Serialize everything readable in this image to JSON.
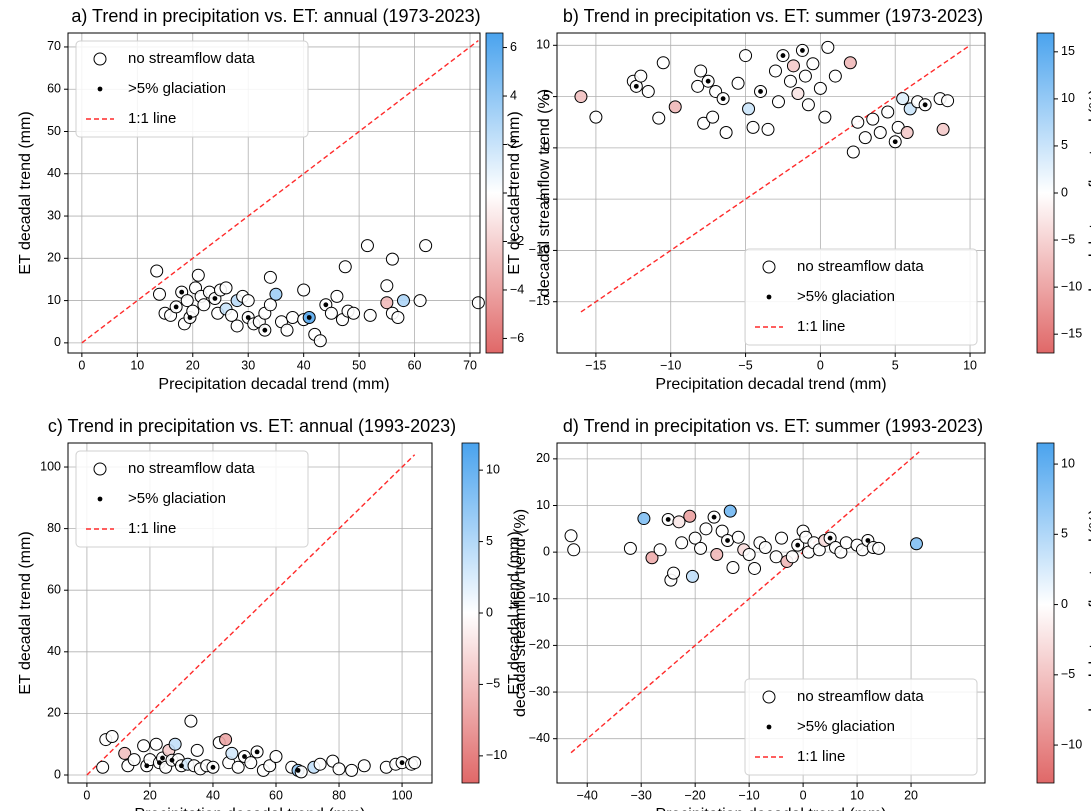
{
  "chart_data": [
    {
      "type": "scatter",
      "title": "a) Trend in precipitation vs. ET: annual (1973-2023)",
      "xlabel": "Precipitation decadal trend (mm)",
      "ylabel": "ET decadal trend (mm)",
      "x": [
        13.5,
        14,
        15,
        16,
        17,
        18,
        18.5,
        19,
        19.5,
        20,
        20.5,
        21,
        21.5,
        22,
        23,
        24,
        24.5,
        25,
        26,
        26,
        27,
        28,
        28,
        29,
        30,
        30,
        31,
        32,
        33,
        33,
        34,
        34,
        35,
        36,
        37,
        38,
        40,
        40,
        41,
        42,
        43,
        44,
        45,
        46,
        47,
        47.5,
        48,
        49,
        51.5,
        52,
        55,
        55,
        56,
        56,
        57,
        58,
        61,
        62,
        71.5
      ],
      "values": [
        17,
        11.5,
        7,
        6.5,
        8.5,
        12,
        4.5,
        10,
        6,
        7.5,
        13,
        16,
        11,
        9,
        12,
        10.5,
        7,
        12.5,
        8,
        13,
        6.5,
        10,
        4,
        11,
        6,
        10,
        4.5,
        5,
        3,
        7,
        15.5,
        9,
        11.5,
        5,
        3,
        6,
        5.5,
        12.5,
        6,
        2,
        0.5,
        9,
        7,
        11,
        5.5,
        18,
        7.5,
        7,
        23,
        6.5,
        9.5,
        13.5,
        7,
        19.8,
        6,
        10,
        10,
        23,
        9.5
      ],
      "streamflow_trend": [
        null,
        null,
        null,
        null,
        null,
        null,
        null,
        null,
        null,
        null,
        null,
        null,
        null,
        null,
        null,
        null,
        null,
        null,
        2,
        null,
        null,
        2.5,
        null,
        null,
        null,
        null,
        null,
        null,
        null,
        null,
        null,
        null,
        3.5,
        null,
        null,
        null,
        null,
        null,
        6,
        null,
        null,
        null,
        null,
        null,
        null,
        null,
        null,
        null,
        null,
        null,
        -3,
        null,
        null,
        null,
        null,
        3,
        null,
        null,
        null
      ],
      "glaciated": [
        false,
        false,
        false,
        false,
        true,
        true,
        false,
        false,
        true,
        false,
        false,
        false,
        false,
        false,
        false,
        true,
        false,
        false,
        false,
        false,
        false,
        false,
        false,
        false,
        true,
        false,
        false,
        false,
        true,
        false,
        false,
        false,
        false,
        false,
        false,
        false,
        false,
        false,
        true,
        false,
        false,
        true,
        false,
        false,
        false,
        false,
        false,
        false,
        false,
        false,
        false,
        false,
        false,
        false,
        false,
        false,
        false,
        false,
        false
      ],
      "xlim": [
        -2.5,
        71.8
      ],
      "ylim": [
        -2.4,
        73.3
      ],
      "xticks": [
        0,
        10,
        20,
        30,
        40,
        50,
        60,
        70
      ],
      "yticks": [
        0,
        10,
        20,
        30,
        40,
        50,
        60,
        70
      ],
      "grid": true,
      "identity_line": {
        "range": [
          0,
          71.5
        ],
        "color": "#ff2a2a"
      },
      "legend": {
        "labels": [
          "no streamflow data",
          ">5% glaciation",
          "1:1 line"
        ],
        "loc": "upper left"
      },
      "colorbar": {
        "label": "decadal streamflow trend (%)",
        "clim": [
          -6.6,
          6.6
        ],
        "colors": [
          "#e06868",
          "#ffffff",
          "#4aa3ee"
        ],
        "ticks": [
          {
            "value": -6,
            "label": "−6"
          },
          {
            "value": -4,
            "label": "−4"
          },
          {
            "value": -2,
            "label": "−2"
          },
          0,
          2,
          4,
          6
        ]
      }
    },
    {
      "type": "scatter",
      "title": "b) Trend in precipitation vs. ET: summer (1973-2023)",
      "xlabel": "Precipitation decadal trend (mm)",
      "ylabel": "ET decadal trend (mm)",
      "x": [
        -16,
        -15,
        -12.5,
        -12.3,
        -12,
        -11.5,
        -10.8,
        -10.5,
        -9.7,
        -8.2,
        -8,
        -7.8,
        -7.5,
        -7.2,
        -7,
        -6.5,
        -6.3,
        -5.5,
        -5,
        -4.8,
        -4.5,
        -4,
        -3.5,
        -3,
        -2.8,
        -2.5,
        -2,
        -1.8,
        -1.5,
        -1.2,
        -1,
        -0.8,
        -0.5,
        0,
        0.3,
        0.5,
        1,
        2,
        2.2,
        2.5,
        3,
        3.5,
        4,
        4.5,
        5,
        5.2,
        5.5,
        5.8,
        6,
        6.5,
        7,
        8,
        8.2,
        8.5
      ],
      "values": [
        5,
        3,
        6.5,
        6,
        7,
        5.5,
        2.9,
        8.3,
        4,
        6,
        7.5,
        2.4,
        6.5,
        3,
        5.5,
        4.8,
        1.5,
        6.3,
        9,
        3.8,
        2,
        5.5,
        1.8,
        7.5,
        4.5,
        9,
        6.5,
        8,
        5.3,
        9.5,
        7,
        4.2,
        8.2,
        5.8,
        3,
        9.8,
        7,
        8.3,
        -0.4,
        2.5,
        1,
        2.8,
        1.5,
        3.5,
        0.6,
        2,
        4.8,
        1.5,
        3.8,
        4.5,
        4.2,
        4.8,
        1.8,
        4.6
      ],
      "streamflow_trend": [
        -7,
        null,
        null,
        null,
        null,
        null,
        null,
        null,
        -8,
        null,
        null,
        null,
        null,
        null,
        null,
        null,
        null,
        null,
        null,
        5,
        null,
        null,
        null,
        null,
        null,
        null,
        null,
        -6,
        -3,
        null,
        null,
        null,
        null,
        null,
        null,
        null,
        null,
        -8,
        null,
        null,
        null,
        null,
        null,
        null,
        null,
        null,
        3,
        -6,
        5,
        null,
        null,
        null,
        -6,
        null
      ],
      "glaciated": [
        false,
        false,
        false,
        true,
        false,
        false,
        false,
        false,
        false,
        false,
        false,
        false,
        true,
        false,
        false,
        true,
        false,
        false,
        false,
        false,
        false,
        true,
        false,
        false,
        false,
        true,
        false,
        false,
        false,
        true,
        false,
        false,
        false,
        false,
        false,
        false,
        false,
        false,
        false,
        false,
        false,
        false,
        false,
        false,
        true,
        false,
        false,
        false,
        false,
        false,
        true,
        false,
        false,
        false
      ],
      "xlim": [
        -17.6,
        11
      ],
      "ylim": [
        -20,
        11.2
      ],
      "xticks": [
        {
          "value": -15,
          "label": "−15"
        },
        {
          "value": -10,
          "label": "−10"
        },
        {
          "value": -5,
          "label": "−5"
        },
        0,
        5,
        10
      ],
      "yticks": [
        {
          "value": -15,
          "label": "−15"
        },
        {
          "value": -10,
          "label": "−10"
        },
        {
          "value": -5,
          "label": "−5"
        },
        0,
        5,
        10
      ],
      "grid": true,
      "identity_line": {
        "range": [
          -16,
          10
        ],
        "color": "#ff2a2a"
      },
      "legend": {
        "labels": [
          "no streamflow data",
          ">5% glaciation",
          "1:1 line"
        ],
        "loc": "lower right"
      },
      "colorbar": {
        "label": "decadal streamflow trend (%)",
        "clim": [
          -17,
          17
        ],
        "colors": [
          "#e06868",
          "#ffffff",
          "#4aa3ee"
        ],
        "ticks": [
          {
            "value": -15,
            "label": "−15"
          },
          {
            "value": -10,
            "label": "−10"
          },
          {
            "value": -5,
            "label": "−5"
          },
          0,
          5,
          10,
          15
        ]
      }
    },
    {
      "type": "scatter",
      "title": "c) Trend in precipitation vs. ET: annual (1993-2023)",
      "xlabel": "Precipitation decadal trend (mm)",
      "ylabel": "ET decadal trend (mm)",
      "x": [
        5,
        6,
        8,
        12,
        13,
        15,
        18,
        19,
        20,
        22,
        23,
        24,
        25,
        26,
        27,
        28,
        29,
        30,
        32,
        33,
        34,
        35,
        36,
        38,
        40,
        42,
        44,
        45,
        46,
        48,
        50,
        52,
        54,
        56,
        58,
        60,
        65,
        67,
        68,
        72,
        74,
        78,
        80,
        84,
        88,
        95,
        98,
        100,
        103,
        104
      ],
      "values": [
        2.5,
        11.5,
        12.5,
        7,
        3,
        5,
        9.5,
        3,
        5,
        10,
        4,
        5.5,
        2.5,
        8,
        4.8,
        10,
        5,
        3,
        3.5,
        17.5,
        3,
        8,
        2,
        3,
        2.5,
        10.5,
        11.5,
        4,
        7,
        2.5,
        6,
        4,
        7.5,
        1.5,
        3,
        6,
        2.5,
        1.5,
        1,
        2.5,
        3.5,
        4.5,
        2,
        1.5,
        3,
        2.5,
        3.5,
        4,
        3.5,
        4
      ],
      "streamflow_trend": [
        null,
        null,
        null,
        -5,
        null,
        null,
        null,
        null,
        null,
        null,
        null,
        null,
        null,
        -4,
        null,
        4,
        null,
        null,
        3,
        null,
        null,
        null,
        null,
        null,
        null,
        null,
        -7,
        null,
        3,
        null,
        null,
        null,
        null,
        null,
        null,
        null,
        null,
        7,
        null,
        4,
        null,
        null,
        null,
        null,
        null,
        null,
        null,
        null,
        null,
        null
      ],
      "glaciated": [
        false,
        false,
        false,
        false,
        false,
        false,
        false,
        true,
        false,
        false,
        true,
        true,
        false,
        false,
        true,
        false,
        false,
        true,
        false,
        false,
        false,
        false,
        false,
        false,
        true,
        false,
        false,
        false,
        false,
        false,
        true,
        false,
        true,
        false,
        false,
        false,
        false,
        true,
        false,
        false,
        false,
        false,
        false,
        false,
        false,
        false,
        false,
        true,
        false,
        false
      ],
      "xlim": [
        -6,
        109.5
      ],
      "ylim": [
        -2.6,
        107.8
      ],
      "xticks": [
        0,
        20,
        40,
        60,
        80,
        100
      ],
      "yticks": [
        0,
        20,
        40,
        60,
        80,
        100
      ],
      "grid": true,
      "identity_line": {
        "range": [
          0,
          104
        ],
        "color": "#ff2a2a"
      },
      "legend": {
        "labels": [
          "no streamflow data",
          ">5% glaciation",
          "1:1 line"
        ],
        "loc": "upper left"
      },
      "colorbar": {
        "label": "decadal streamflow trend (%)",
        "clim": [
          -11.9,
          11.9
        ],
        "colors": [
          "#e06868",
          "#ffffff",
          "#4aa3ee"
        ],
        "ticks": [
          {
            "value": -10,
            "label": "−10"
          },
          {
            "value": -5,
            "label": "−5"
          },
          0,
          5,
          10
        ]
      }
    },
    {
      "type": "scatter",
      "title": "d) Trend in precipitation vs. ET: summer (1993-2023)",
      "xlabel": "Precipitation decadal trend (mm)",
      "ylabel": "ET decadal trend (mm)",
      "x": [
        -43,
        -42.5,
        -32,
        -29.5,
        -28,
        -26.5,
        -25,
        -24.5,
        -24,
        -23,
        -22.5,
        -21,
        -20.5,
        -20,
        -19,
        -18,
        -16.5,
        -16,
        -15,
        -14,
        -13.5,
        -13,
        -12,
        -11,
        -10,
        -9,
        -8,
        -7,
        -5,
        -4,
        -3,
        -2,
        -1,
        0,
        0.5,
        1,
        2,
        3,
        4,
        5,
        6,
        7,
        8,
        10,
        11,
        12,
        13,
        14,
        21
      ],
      "values": [
        3.5,
        0.5,
        0.8,
        7.2,
        -1.2,
        0.5,
        7,
        -6,
        -4.5,
        6.5,
        2,
        7.7,
        -5.2,
        3,
        0.8,
        5,
        7.5,
        -0.5,
        4.5,
        2.5,
        8.8,
        -3.3,
        3.2,
        0.5,
        -0.5,
        -3.5,
        2,
        1,
        -1,
        3,
        -2,
        -1,
        1.5,
        4.5,
        3.2,
        0,
        2,
        0.5,
        2.5,
        3,
        1,
        0,
        2,
        1.5,
        0.5,
        2.5,
        1,
        0.8,
        1.8
      ],
      "streamflow_trend": [
        null,
        null,
        null,
        8,
        -7,
        null,
        null,
        null,
        null,
        -2,
        null,
        -8,
        4,
        null,
        null,
        null,
        null,
        -6,
        null,
        null,
        9,
        null,
        null,
        -3,
        null,
        null,
        null,
        null,
        null,
        null,
        -6,
        null,
        null,
        null,
        null,
        null,
        null,
        null,
        -3,
        null,
        null,
        null,
        null,
        null,
        null,
        null,
        null,
        null,
        8
      ],
      "glaciated": [
        false,
        false,
        false,
        false,
        false,
        false,
        true,
        false,
        false,
        false,
        false,
        false,
        false,
        false,
        false,
        false,
        true,
        false,
        false,
        true,
        false,
        false,
        false,
        false,
        false,
        false,
        false,
        false,
        false,
        false,
        false,
        false,
        true,
        false,
        false,
        false,
        false,
        false,
        false,
        true,
        false,
        false,
        false,
        false,
        false,
        true,
        false,
        false,
        false
      ],
      "xlim": [
        -45.6,
        33.7
      ],
      "ylim": [
        -49.5,
        23.4
      ],
      "xticks": [
        {
          "value": -40,
          "label": "−40"
        },
        {
          "value": -30,
          "label": "−30"
        },
        {
          "value": -20,
          "label": "−20"
        },
        {
          "value": -10,
          "label": "−10"
        },
        0,
        10,
        20
      ],
      "yticks": [
        {
          "value": -40,
          "label": "−40"
        },
        {
          "value": -30,
          "label": "−30"
        },
        {
          "value": -20,
          "label": "−20"
        },
        {
          "value": -10,
          "label": "−10"
        },
        0,
        10,
        20
      ],
      "grid": true,
      "identity_line": {
        "range": [
          -43,
          21.5
        ],
        "color": "#ff2a2a"
      },
      "legend": {
        "labels": [
          "no streamflow data",
          ">5% glaciation",
          "1:1 line"
        ],
        "loc": "lower right"
      },
      "colorbar": {
        "label": "decadal streamflow trend (%)",
        "clim": [
          -12.7,
          11.5
        ],
        "colors": [
          "#e06868",
          "#ffffff",
          "#4aa3ee"
        ],
        "ticks": [
          {
            "value": -10,
            "label": "−10"
          },
          {
            "value": -5,
            "label": "−5"
          },
          0,
          5,
          10
        ]
      }
    }
  ]
}
